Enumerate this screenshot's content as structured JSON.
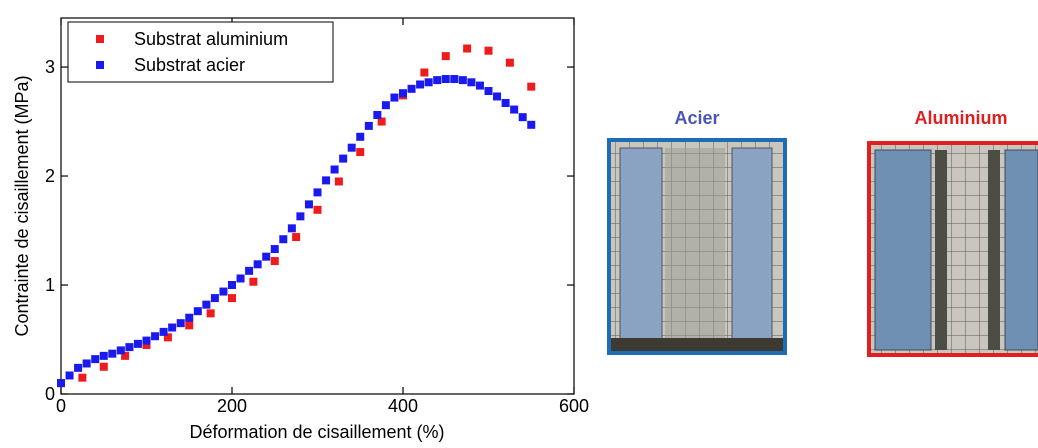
{
  "chart_data": {
    "type": "scatter",
    "x_label": "Déformation de cisaillement (%)",
    "y_label": "Contrainte de cisaillement (MPa)",
    "xlim": [
      0,
      600
    ],
    "ylim": [
      0,
      3.45
    ],
    "xticks": [
      0,
      200,
      400,
      600
    ],
    "yticks": [
      0,
      1,
      2,
      3
    ],
    "legend": "upper left",
    "series": [
      {
        "name": "Substrat aluminium",
        "color": "#ee1c1c",
        "x": [
          0,
          25,
          50,
          75,
          100,
          125,
          150,
          175,
          200,
          225,
          250,
          275,
          300,
          325,
          350,
          375,
          400,
          425,
          450,
          475,
          500,
          525,
          550
        ],
        "values": [
          0.1,
          0.15,
          0.25,
          0.35,
          0.45,
          0.52,
          0.63,
          0.74,
          0.88,
          1.03,
          1.22,
          1.44,
          1.69,
          1.95,
          2.22,
          2.5,
          2.74,
          2.95,
          3.1,
          3.17,
          3.15,
          3.04,
          2.82
        ]
      },
      {
        "name": "Substrat acier",
        "color": "#1a1aee",
        "x": [
          0,
          10,
          20,
          30,
          40,
          50,
          60,
          70,
          80,
          90,
          100,
          110,
          120,
          130,
          140,
          150,
          160,
          170,
          180,
          190,
          200,
          210,
          220,
          230,
          240,
          250,
          260,
          270,
          280,
          290,
          300,
          310,
          320,
          330,
          340,
          350,
          360,
          370,
          380,
          390,
          400,
          410,
          420,
          430,
          440,
          450,
          460,
          470,
          480,
          490,
          500,
          510,
          520,
          530,
          540,
          550
        ],
        "values": [
          0.1,
          0.17,
          0.24,
          0.28,
          0.32,
          0.35,
          0.37,
          0.4,
          0.43,
          0.46,
          0.49,
          0.53,
          0.57,
          0.61,
          0.65,
          0.7,
          0.76,
          0.82,
          0.88,
          0.94,
          1.0,
          1.06,
          1.13,
          1.19,
          1.26,
          1.33,
          1.42,
          1.52,
          1.63,
          1.74,
          1.85,
          1.96,
          2.06,
          2.16,
          2.26,
          2.36,
          2.46,
          2.56,
          2.65,
          2.72,
          2.76,
          2.8,
          2.84,
          2.86,
          2.88,
          2.89,
          2.89,
          2.88,
          2.86,
          2.83,
          2.78,
          2.73,
          2.67,
          2.61,
          2.54,
          2.47
        ]
      }
    ]
  },
  "photo_labels": [
    "Acier",
    "Aluminium"
  ]
}
